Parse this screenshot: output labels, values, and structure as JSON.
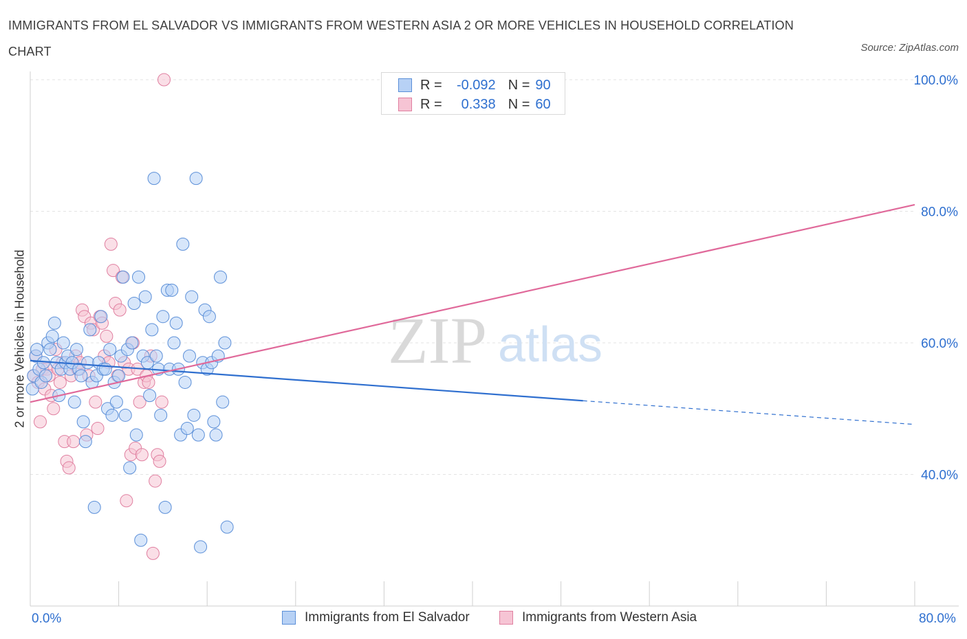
{
  "title": "IMMIGRANTS FROM EL SALVADOR VS IMMIGRANTS FROM WESTERN ASIA 2 OR MORE VEHICLES IN HOUSEHOLD CORRELATION CHART",
  "source": "Source: ZipAtlas.com",
  "watermark": {
    "zip": "ZIP",
    "atlas": "atlas"
  },
  "legend": {
    "rows": [
      {
        "r_label": "R =",
        "r_value": "-0.092",
        "n_label": "N =",
        "n_value": "90"
      },
      {
        "r_label": "R =",
        "r_value": "0.338",
        "n_label": "N =",
        "n_value": "60"
      }
    ]
  },
  "bottom_legend": [
    "Immigrants from El Salvador",
    "Immigrants from Western Asia"
  ],
  "colors": {
    "blue_fill": "#b7d1f5",
    "blue_stroke": "#5b8fd8",
    "blue_line": "#2f6fcf",
    "pink_fill": "#f6c4d4",
    "pink_stroke": "#e07fa0",
    "pink_line": "#e0699a",
    "grid": "#e3e3e3",
    "tick_text": "#2e6fcf"
  },
  "chart_data": {
    "type": "scatter",
    "ylabel": "2 or more Vehicles in Household",
    "xlim": [
      0,
      80
    ],
    "ylim": [
      20,
      100
    ],
    "x_tick_labels": [
      "0.0%",
      "80.0%"
    ],
    "y_ticks": [
      40,
      60,
      80,
      100
    ],
    "y_tick_labels": [
      "40.0%",
      "60.0%",
      "80.0%",
      "100.0%"
    ],
    "grid": true,
    "series": [
      {
        "name": "Immigrants from El Salvador",
        "color": "#5b8fd8",
        "trend": {
          "x": [
            0,
            50
          ],
          "y": [
            57.3,
            51.2
          ],
          "dashed_to": [
            80,
            47.6
          ]
        },
        "points": [
          [
            0.2,
            53
          ],
          [
            0.3,
            55
          ],
          [
            0.5,
            58
          ],
          [
            0.6,
            59
          ],
          [
            0.8,
            56
          ],
          [
            1.0,
            54
          ],
          [
            1.2,
            57
          ],
          [
            1.4,
            55
          ],
          [
            1.6,
            60
          ],
          [
            1.8,
            59
          ],
          [
            2.0,
            61
          ],
          [
            2.2,
            63
          ],
          [
            2.4,
            57
          ],
          [
            2.6,
            52
          ],
          [
            2.8,
            56
          ],
          [
            3.0,
            60
          ],
          [
            3.2,
            57
          ],
          [
            3.4,
            58
          ],
          [
            3.6,
            56
          ],
          [
            3.8,
            57
          ],
          [
            4.0,
            51
          ],
          [
            4.2,
            59
          ],
          [
            4.4,
            56
          ],
          [
            4.6,
            55
          ],
          [
            4.8,
            48
          ],
          [
            5.0,
            45
          ],
          [
            5.2,
            57
          ],
          [
            5.4,
            62
          ],
          [
            5.6,
            54
          ],
          [
            5.8,
            35
          ],
          [
            6.0,
            55
          ],
          [
            6.2,
            57
          ],
          [
            6.4,
            64
          ],
          [
            6.6,
            56
          ],
          [
            6.8,
            56
          ],
          [
            7.0,
            50
          ],
          [
            7.2,
            59
          ],
          [
            7.4,
            49
          ],
          [
            7.6,
            54
          ],
          [
            7.8,
            51
          ],
          [
            8.0,
            55
          ],
          [
            8.2,
            58
          ],
          [
            8.4,
            70
          ],
          [
            8.6,
            49
          ],
          [
            8.8,
            59
          ],
          [
            9.0,
            41
          ],
          [
            9.2,
            60
          ],
          [
            9.4,
            66
          ],
          [
            9.6,
            46
          ],
          [
            9.8,
            70
          ],
          [
            10.0,
            30
          ],
          [
            10.2,
            58
          ],
          [
            10.4,
            67
          ],
          [
            10.6,
            57
          ],
          [
            10.8,
            52
          ],
          [
            11.0,
            62
          ],
          [
            11.2,
            85
          ],
          [
            11.4,
            58
          ],
          [
            11.6,
            56
          ],
          [
            11.8,
            49
          ],
          [
            12.0,
            64
          ],
          [
            12.2,
            35
          ],
          [
            12.4,
            68
          ],
          [
            12.6,
            56
          ],
          [
            12.8,
            68
          ],
          [
            13.0,
            60
          ],
          [
            13.2,
            63
          ],
          [
            13.4,
            56
          ],
          [
            13.6,
            46
          ],
          [
            13.8,
            75
          ],
          [
            14.0,
            54
          ],
          [
            14.2,
            47
          ],
          [
            14.4,
            58
          ],
          [
            14.6,
            67
          ],
          [
            14.8,
            49
          ],
          [
            15.0,
            85
          ],
          [
            15.2,
            46
          ],
          [
            15.4,
            29
          ],
          [
            15.6,
            57
          ],
          [
            15.8,
            65
          ],
          [
            16.0,
            56
          ],
          [
            16.2,
            64
          ],
          [
            16.4,
            57
          ],
          [
            16.6,
            48
          ],
          [
            16.8,
            46
          ],
          [
            17.0,
            58
          ],
          [
            17.2,
            70
          ],
          [
            17.4,
            51
          ],
          [
            17.6,
            60
          ],
          [
            17.8,
            32
          ]
        ]
      },
      {
        "name": "Immigrants from Western Asia",
        "color": "#e07fa0",
        "trend": {
          "x": [
            0,
            80
          ],
          "y": [
            51,
            81
          ]
        },
        "points": [
          [
            0.3,
            55
          ],
          [
            0.5,
            58
          ],
          [
            0.7,
            54
          ],
          [
            0.9,
            48
          ],
          [
            1.1,
            56
          ],
          [
            1.3,
            53
          ],
          [
            1.5,
            56
          ],
          [
            1.7,
            55
          ],
          [
            1.9,
            52
          ],
          [
            2.1,
            50
          ],
          [
            2.3,
            59
          ],
          [
            2.5,
            56
          ],
          [
            2.7,
            54
          ],
          [
            2.9,
            57
          ],
          [
            3.1,
            45
          ],
          [
            3.3,
            42
          ],
          [
            3.5,
            41
          ],
          [
            3.7,
            55
          ],
          [
            3.9,
            45
          ],
          [
            4.1,
            58
          ],
          [
            4.3,
            56
          ],
          [
            4.5,
            57
          ],
          [
            4.7,
            65
          ],
          [
            4.9,
            64
          ],
          [
            5.1,
            46
          ],
          [
            5.3,
            55
          ],
          [
            5.5,
            63
          ],
          [
            5.7,
            62
          ],
          [
            5.9,
            51
          ],
          [
            6.1,
            47
          ],
          [
            6.3,
            64
          ],
          [
            6.5,
            63
          ],
          [
            6.7,
            58
          ],
          [
            6.9,
            61
          ],
          [
            7.1,
            57
          ],
          [
            7.3,
            75
          ],
          [
            7.5,
            71
          ],
          [
            7.7,
            66
          ],
          [
            7.9,
            55
          ],
          [
            8.1,
            65
          ],
          [
            8.3,
            70
          ],
          [
            8.5,
            57
          ],
          [
            8.7,
            36
          ],
          [
            8.9,
            56
          ],
          [
            9.1,
            43
          ],
          [
            9.3,
            60
          ],
          [
            9.5,
            44
          ],
          [
            9.7,
            56
          ],
          [
            9.9,
            51
          ],
          [
            10.1,
            43
          ],
          [
            10.3,
            54
          ],
          [
            10.5,
            55
          ],
          [
            10.7,
            54
          ],
          [
            10.9,
            58
          ],
          [
            11.1,
            28
          ],
          [
            11.3,
            39
          ],
          [
            11.5,
            43
          ],
          [
            11.7,
            42
          ],
          [
            11.9,
            51
          ],
          [
            12.1,
            100
          ]
        ]
      }
    ]
  }
}
